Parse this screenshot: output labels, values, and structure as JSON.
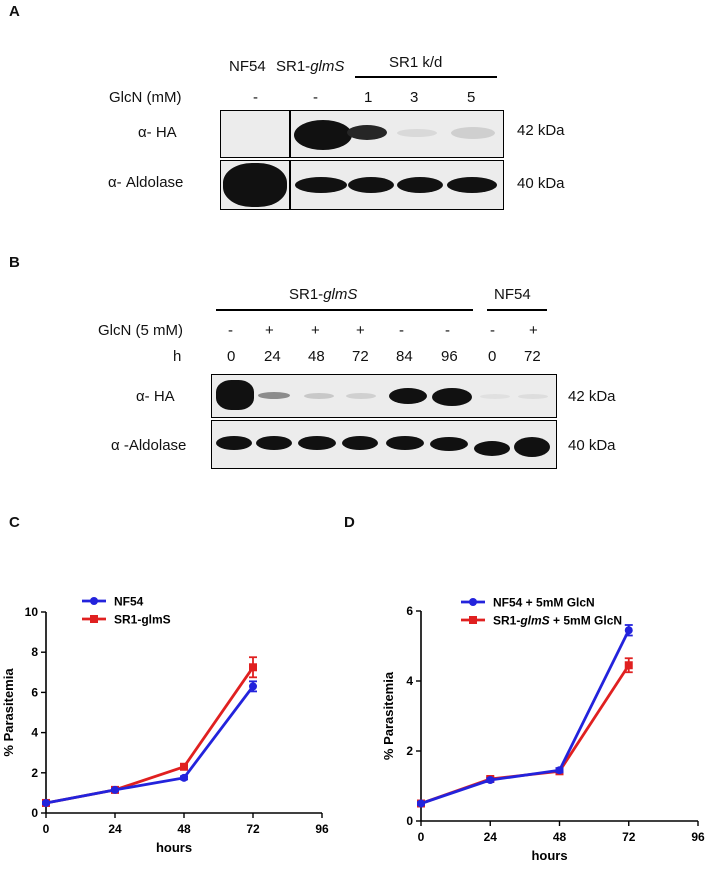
{
  "panelA": {
    "label": "A",
    "header": [
      "NF54",
      "SR1-",
      "glmS",
      "SR1  k/d"
    ],
    "glcn_label": "GlcN (mM)",
    "glcn_values": [
      "-",
      "-",
      "1",
      "3",
      "5"
    ],
    "rows": [
      "α- HA",
      "α- Aldolase"
    ],
    "kda": [
      "42 kDa",
      "40 kDa"
    ]
  },
  "panelB": {
    "label": "B",
    "group1": [
      "SR1-",
      "glmS"
    ],
    "group2": "NF54",
    "glcn_label": "GlcN (5 mM)",
    "glcn_values": [
      "-",
      "+",
      "+",
      "+",
      "-",
      "-",
      "-",
      "+"
    ],
    "h_label": "h",
    "h_values": [
      "0",
      "24",
      "48",
      "72",
      "84",
      "96",
      "0",
      "72"
    ],
    "rows": [
      "α- HA",
      "α -Aldolase"
    ],
    "kda": [
      "42 kDa",
      "40 kDa"
    ]
  },
  "chart_data": [
    {
      "panel": "C",
      "type": "line",
      "xlabel": "hours",
      "ylabel": "% Parasitemia",
      "x": [
        0,
        24,
        48,
        72
      ],
      "xticks": [
        "0",
        "24",
        "48",
        "72",
        "96"
      ],
      "yticks": [
        "0",
        "2",
        "4",
        "6",
        "8",
        "10"
      ],
      "xlim": [
        0,
        96
      ],
      "ylim": [
        0,
        10
      ],
      "legend_position": "top-left",
      "series": [
        {
          "name": "NF54",
          "color": "#2323dc",
          "marker": "circle",
          "values": [
            0.5,
            1.15,
            1.75,
            6.3
          ],
          "err": [
            0.05,
            0.05,
            0.08,
            0.25
          ]
        },
        {
          "name": "SR1-glmS",
          "color": "#e02020",
          "marker": "square",
          "values": [
            0.5,
            1.15,
            2.3,
            7.25
          ],
          "err": [
            0.05,
            0.05,
            0.1,
            0.5
          ]
        }
      ]
    },
    {
      "panel": "D",
      "type": "line",
      "xlabel": "hours",
      "ylabel": "% Parasitemia",
      "x": [
        0,
        24,
        48,
        72
      ],
      "xticks": [
        "0",
        "24",
        "48",
        "72",
        "96"
      ],
      "yticks": [
        "0",
        "2",
        "4",
        "6"
      ],
      "xlim": [
        0,
        96
      ],
      "ylim": [
        0,
        6
      ],
      "legend_position": "top-left",
      "series": [
        {
          "name": "NF54 + 5mM GlcN",
          "name_parts": [
            "NF54 + 5mM GlcN"
          ],
          "color": "#2323dc",
          "marker": "circle",
          "values": [
            0.5,
            1.17,
            1.45,
            5.45
          ],
          "err": [
            0.04,
            0.05,
            0.06,
            0.15
          ]
        },
        {
          "name": "SR1-glmS + 5mM GlcN",
          "name_parts": [
            "SR1-",
            "glmS",
            " + 5mM GlcN"
          ],
          "color": "#e02020",
          "marker": "square",
          "values": [
            0.5,
            1.2,
            1.42,
            4.45
          ],
          "err": [
            0.04,
            0.05,
            0.06,
            0.2
          ]
        }
      ]
    }
  ]
}
